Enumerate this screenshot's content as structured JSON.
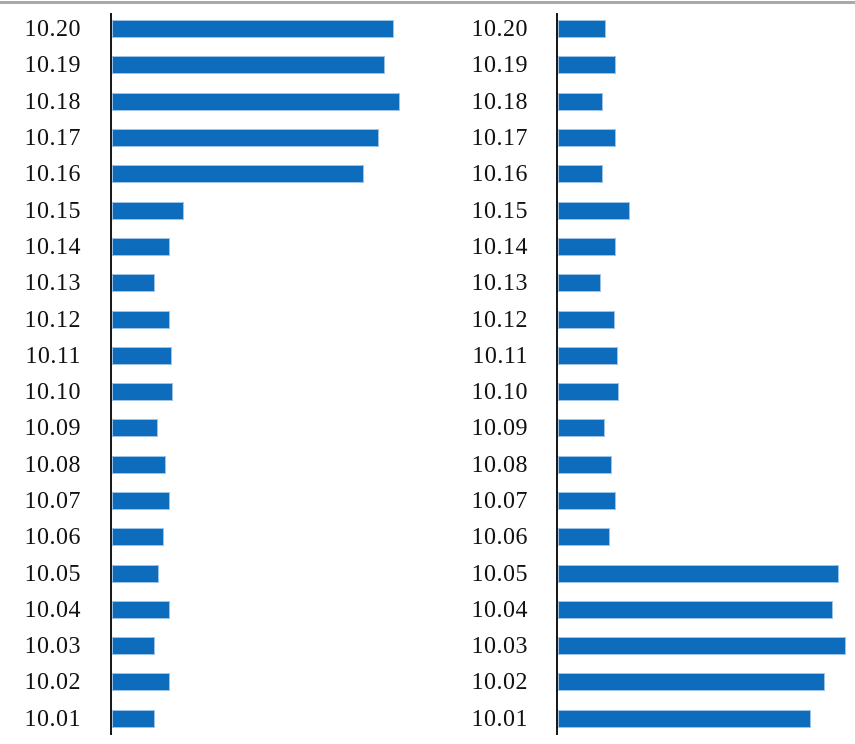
{
  "page": {
    "background": "#ffffff",
    "top_rule_color": "#a9a9a9"
  },
  "chart_data": [
    {
      "type": "bar",
      "orientation": "horizontal",
      "title": "",
      "xlabel": "",
      "ylabel": "",
      "legend": null,
      "grid": false,
      "axis_labels_visible": false,
      "note": "x-axis has no tick labels; values are relative bar lengths (px at native scale)",
      "bar_color": "#0e6cbd",
      "bar_edge_color": "#9dc3e6",
      "axis_color": "#1a1a1a",
      "xlim": [
        0,
        316
      ],
      "categories": [
        "10.20",
        "10.19",
        "10.18",
        "10.17",
        "10.16",
        "10.15",
        "10.14",
        "10.13",
        "10.12",
        "10.11",
        "10.10",
        "10.09",
        "10.08",
        "10.07",
        "10.06",
        "10.05",
        "10.04",
        "10.03",
        "10.02",
        "10.01"
      ],
      "values": [
        282,
        273,
        288,
        267,
        252,
        72,
        58,
        43,
        58,
        60,
        61,
        46,
        54,
        58,
        52,
        47,
        58,
        43,
        58,
        43
      ]
    },
    {
      "type": "bar",
      "orientation": "horizontal",
      "title": "",
      "xlabel": "",
      "ylabel": "",
      "legend": null,
      "grid": false,
      "axis_labels_visible": false,
      "note": "x-axis has no tick labels; values are relative bar lengths (px at native scale)",
      "bar_color": "#0e6cbd",
      "bar_edge_color": "#9dc3e6",
      "axis_color": "#1a1a1a",
      "xlim": [
        0,
        297
      ],
      "categories": [
        "10.20",
        "10.19",
        "10.18",
        "10.17",
        "10.16",
        "10.15",
        "10.14",
        "10.13",
        "10.12",
        "10.11",
        "10.10",
        "10.09",
        "10.08",
        "10.07",
        "10.06",
        "10.05",
        "10.04",
        "10.03",
        "10.02",
        "10.01"
      ],
      "values": [
        48,
        58,
        45,
        58,
        45,
        72,
        58,
        43,
        57,
        60,
        61,
        47,
        54,
        58,
        52,
        281,
        275,
        288,
        267,
        253
      ]
    }
  ]
}
